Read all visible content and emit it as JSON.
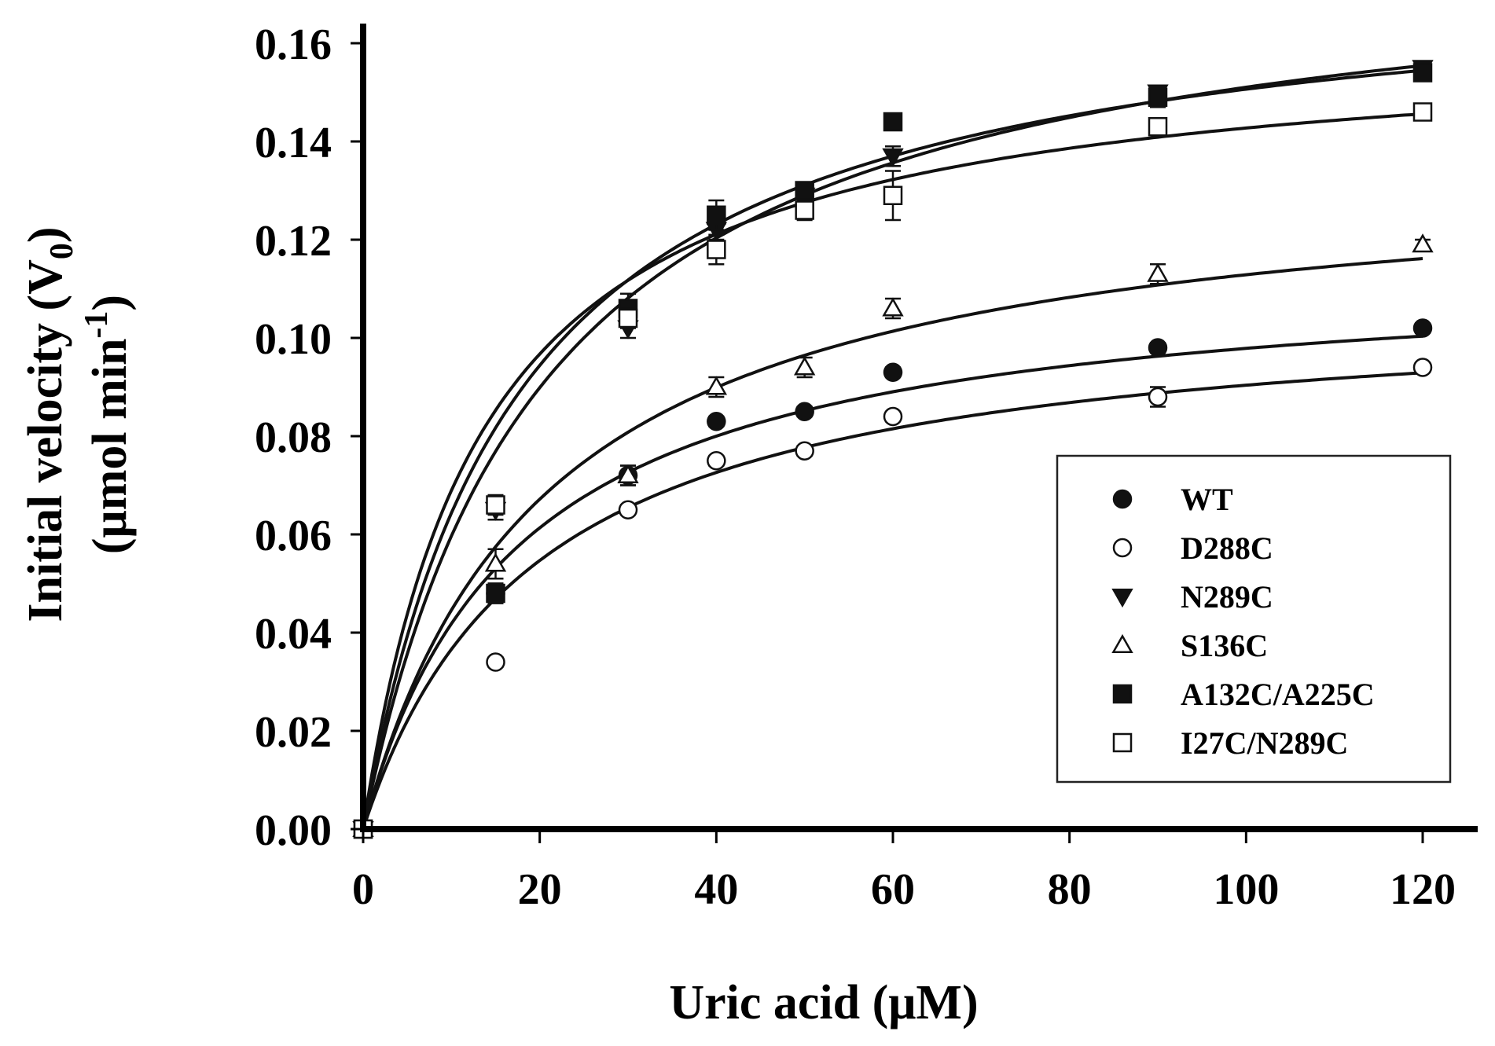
{
  "chart_data": {
    "type": "scatter",
    "title": "",
    "xlabel": "Uric acid (μM)",
    "ylabel_line1": "Initial velocity (V",
    "ylabel_sub1": "0",
    "ylabel_line1_end": ")",
    "ylabel_line2": "(μmol min",
    "ylabel_sup2": "-1",
    "ylabel_line2_end": ")",
    "xlim": [
      0,
      120
    ],
    "ylim": [
      0,
      0.16
    ],
    "x_ticks": [
      0,
      20,
      40,
      60,
      80,
      100,
      120
    ],
    "x_tick_labels": [
      "0",
      "20",
      "40",
      "60",
      "80",
      "100",
      "120"
    ],
    "y_ticks": [
      0,
      0.02,
      0.04,
      0.06,
      0.08,
      0.1,
      0.12,
      0.14,
      0.16
    ],
    "y_tick_labels": [
      "0.00",
      "0.02",
      "0.04",
      "0.06",
      "0.08",
      "0.10",
      "0.12",
      "0.14",
      "0.16"
    ],
    "grid": false,
    "legend_position": "right",
    "x": [
      0,
      15,
      30,
      40,
      50,
      60,
      90,
      120
    ],
    "series": [
      {
        "name": "WT",
        "marker": "circle-filled",
        "y": [
          0,
          0.048,
          0.072,
          0.083,
          0.085,
          0.093,
          0.098,
          0.102
        ],
        "err": [
          0,
          0.002,
          0.002,
          0.001,
          0.001,
          0.001,
          0.001,
          0.001
        ],
        "fit": {
          "vmax": 0.115,
          "km": 17.5
        }
      },
      {
        "name": "D288C",
        "marker": "circle-open",
        "y": [
          0,
          0.034,
          0.065,
          0.075,
          0.077,
          0.084,
          0.088,
          0.094
        ],
        "err": [
          0,
          0.001,
          0.001,
          0.001,
          0.001,
          0.001,
          0.002,
          0.001
        ],
        "fit": {
          "vmax": 0.108,
          "km": 19.5
        }
      },
      {
        "name": "N289C",
        "marker": "triangle-down-filled",
        "y": [
          0,
          0.065,
          0.102,
          0.122,
          0.129,
          0.137,
          0.15,
          0.155
        ],
        "err": [
          0,
          0.002,
          0.002,
          0.002,
          0.001,
          0.002,
          0.001,
          0.001
        ],
        "fit": {
          "vmax": 0.182,
          "km": 20.5
        }
      },
      {
        "name": "S136C",
        "marker": "triangle-up-open",
        "y": [
          0,
          0.054,
          0.072,
          0.09,
          0.094,
          0.106,
          0.113,
          0.119
        ],
        "err": [
          0,
          0.003,
          0.002,
          0.002,
          0.002,
          0.002,
          0.002,
          0.001
        ],
        "fit": {
          "vmax": 0.136,
          "km": 20.5
        }
      },
      {
        "name": "A132C/A225C",
        "marker": "square-filled",
        "y": [
          0,
          0.048,
          0.106,
          0.125,
          0.13,
          0.144,
          0.149,
          0.154
        ],
        "err": [
          0,
          0.002,
          0.003,
          0.003,
          0.001,
          0.001,
          0.002,
          0.001
        ],
        "fit": {
          "vmax": 0.177,
          "km": 17.5
        }
      },
      {
        "name": "I27C/N289C",
        "marker": "square-open",
        "y": [
          0,
          0.066,
          0.104,
          0.118,
          0.126,
          0.129,
          0.143,
          0.146
        ],
        "err": [
          0,
          0.002,
          0.002,
          0.003,
          0.002,
          0.005,
          0.001,
          0.001
        ],
        "fit": {
          "vmax": 0.162,
          "km": 13.5
        }
      }
    ]
  }
}
